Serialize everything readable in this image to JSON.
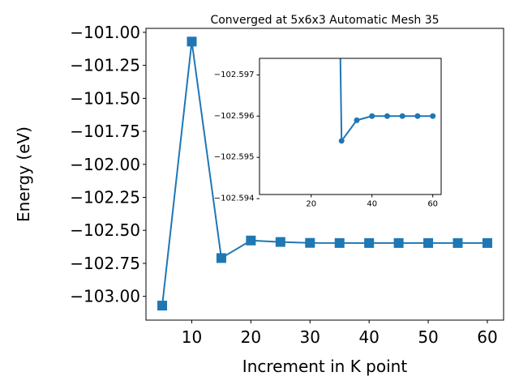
{
  "chart_data": [
    {
      "panel": "main",
      "type": "line",
      "title": "Converged at 5x6x3 Automatic Mesh 35",
      "xlabel": "Increment in K point",
      "ylabel": "Energy (eV)",
      "xlim": [
        2.25,
        62.75
      ],
      "ylim": [
        -103.18,
        -100.97
      ],
      "xticks": [
        10,
        20,
        30,
        40,
        50,
        60
      ],
      "xtick_labels": [
        "10",
        "20",
        "30",
        "40",
        "50",
        "60"
      ],
      "yticks": [
        -101.0,
        -101.25,
        -101.5,
        -101.75,
        -102.0,
        -102.25,
        -102.5,
        -102.75,
        -103.0
      ],
      "ytick_labels": [
        "−101.00",
        "−101.25",
        "−101.50",
        "−101.75",
        "−102.00",
        "−102.25",
        "−102.50",
        "−102.75",
        "−103.00"
      ],
      "marker": "square",
      "color": "#1f77b4",
      "grid": false,
      "series": [
        {
          "x": [
            5,
            10,
            15,
            20,
            25,
            30,
            35,
            40,
            45,
            50,
            55,
            60
          ],
          "y": [
            -103.07,
            -101.07,
            -102.71,
            -102.577,
            -102.588,
            -102.595,
            -102.596,
            -102.596,
            -102.596,
            -102.596,
            -102.596,
            -102.596
          ]
        }
      ]
    },
    {
      "panel": "inset",
      "type": "line",
      "xlim": [
        3.0,
        62.75
      ],
      "ylim": [
        -102.5941,
        -102.5974
      ],
      "xticks": [
        20,
        40,
        60
      ],
      "xtick_labels": [
        "20",
        "40",
        "60"
      ],
      "yticks": [
        -102.594,
        -102.595,
        -102.596,
        -102.597
      ],
      "ytick_labels": [
        "−102.594",
        "−102.595",
        "−102.596",
        "−102.597"
      ],
      "marker": "circle",
      "color": "#1f77b4",
      "grid": false,
      "series": [
        {
          "x": [
            30,
            35,
            40,
            45,
            50,
            55,
            60
          ],
          "y": [
            -102.5954,
            -102.5959,
            -102.596,
            -102.596,
            -102.596,
            -102.596,
            -102.596
          ]
        }
      ],
      "clipped_line_from": {
        "x": 30,
        "y": -102.5954,
        "to_x": 29.6,
        "to_y": -102.5974
      }
    }
  ]
}
